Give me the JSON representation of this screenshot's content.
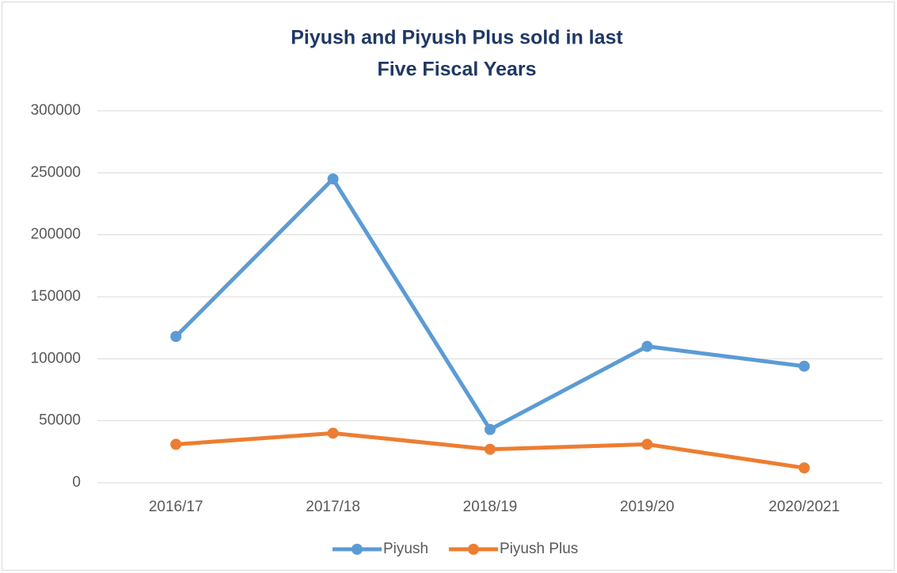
{
  "chart_data": {
    "type": "line",
    "title": [
      "Piyush and Piyush Plus sold in last",
      "Five Fiscal Years"
    ],
    "categories": [
      "2016/17",
      "2017/18",
      "2018/19",
      "2019/20",
      "2020/2021"
    ],
    "series": [
      {
        "name": "Piyush",
        "color": "#5b9bd5",
        "values": [
          118000,
          245000,
          43000,
          110000,
          94000
        ]
      },
      {
        "name": "Piyush Plus",
        "color": "#ed7d31",
        "values": [
          31000,
          40000,
          27000,
          31000,
          12000
        ]
      }
    ],
    "ylim": [
      0,
      300000
    ],
    "yticks": [
      0,
      50000,
      100000,
      150000,
      200000,
      250000,
      300000
    ],
    "grid": true,
    "legend": "bottom"
  }
}
